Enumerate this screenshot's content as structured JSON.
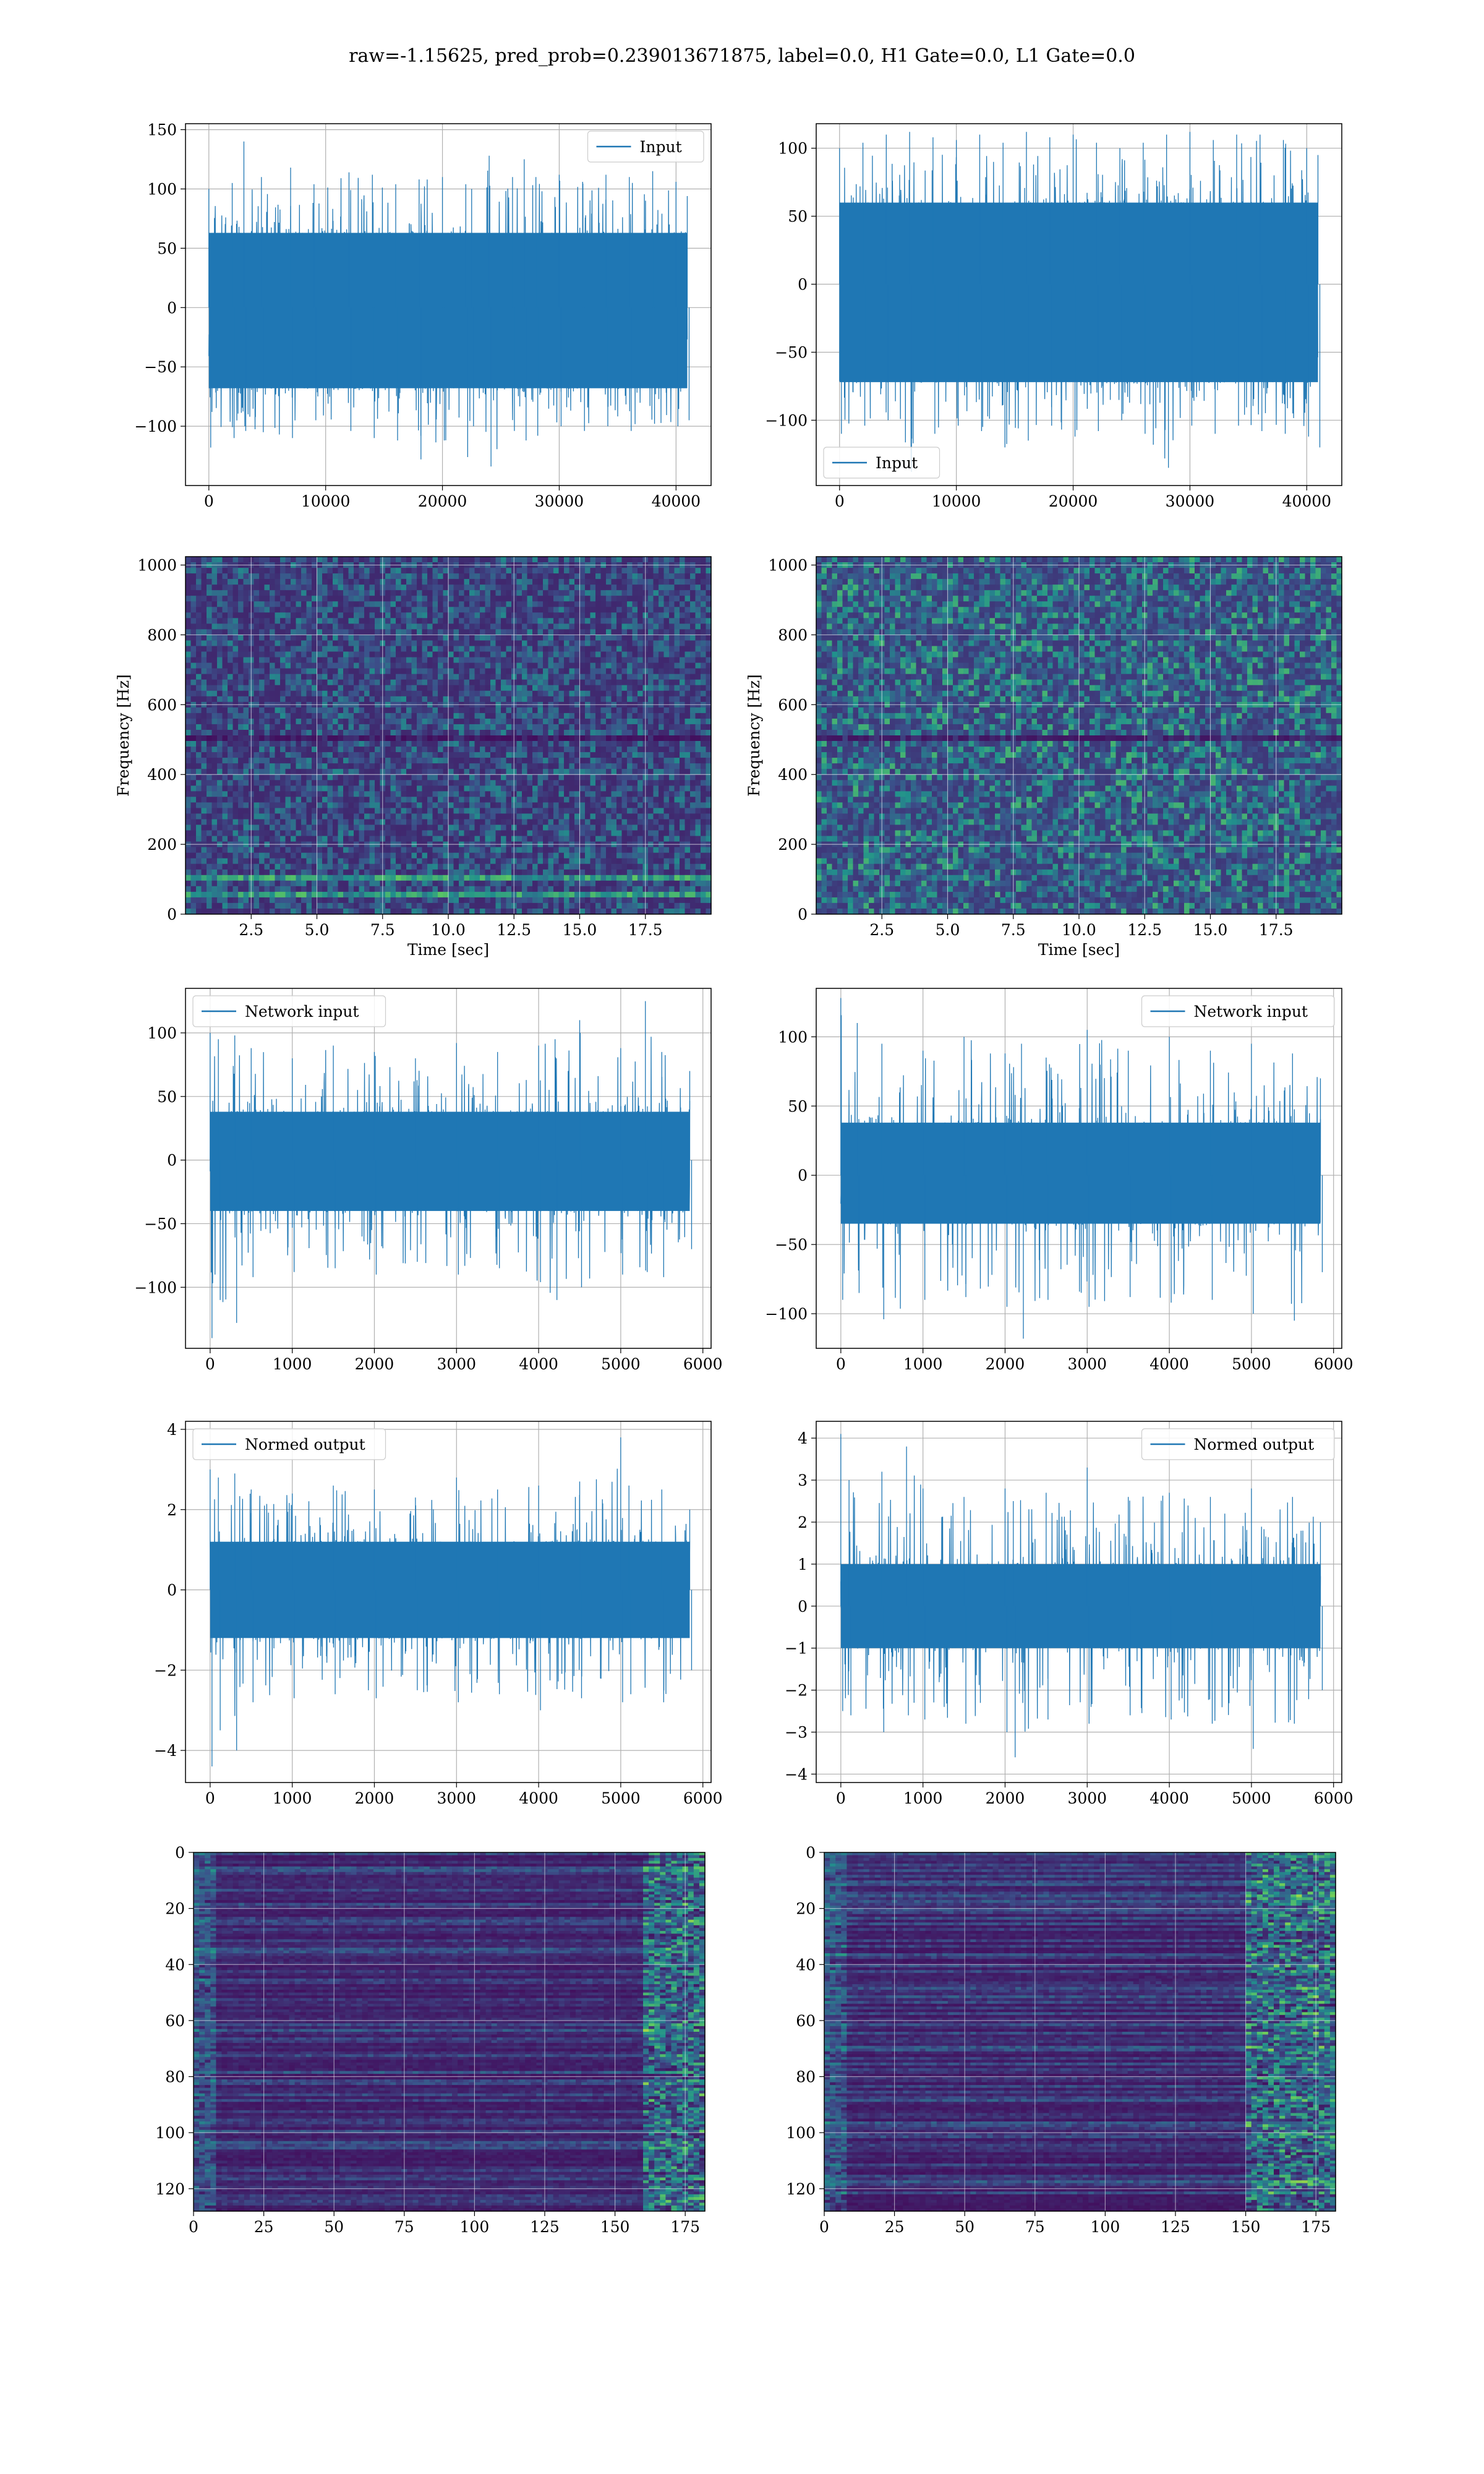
{
  "figure": {
    "suptitle": "raw=-1.15625, pred_prob=0.239013671875, label=0.0, H1 Gate=0.0, L1 Gate=0.0",
    "series_color": "#1f77b4"
  },
  "chart_data": [
    {
      "id": "input-h1",
      "type": "line",
      "title": "",
      "xlabel": "",
      "ylabel": "",
      "xlim": [
        -2000,
        43000
      ],
      "ylim": [
        -150,
        155
      ],
      "xticks": [
        0,
        10000,
        20000,
        30000,
        40000
      ],
      "xtick_labels": [
        "0",
        "10000",
        "20000",
        "30000",
        "40000"
      ],
      "yticks": [
        -100,
        -50,
        0,
        50,
        100,
        150
      ],
      "ytick_labels": [
        "−100",
        "−50",
        "0",
        "50",
        "100",
        "150"
      ],
      "grid": true,
      "legend": [
        "Input"
      ],
      "legend_loc": "upper right",
      "series": [
        {
          "name": "Input",
          "n_samples": 40960,
          "x_range": [
            0,
            40960
          ],
          "core_band": [
            -68,
            63
          ],
          "envelope_x": [
            0,
            2000,
            3000,
            4500,
            7000,
            9000,
            12000,
            14000,
            16000,
            18000,
            20000,
            22000,
            22500,
            24000,
            26000,
            27000,
            28000,
            30000,
            32000,
            34000,
            36000,
            38000,
            40000,
            40960
          ],
          "envelope_upper": [
            100,
            105,
            140,
            110,
            118,
            104,
            114,
            112,
            104,
            108,
            110,
            104,
            100,
            128,
            110,
            125,
            110,
            112,
            106,
            112,
            110,
            115,
            106,
            94
          ],
          "envelope_lower": [
            -118,
            -110,
            -104,
            -105,
            -110,
            -95,
            -104,
            -110,
            -112,
            -128,
            -112,
            -126,
            -100,
            -134,
            -104,
            -112,
            -108,
            -100,
            -104,
            -100,
            -104,
            -98,
            -100,
            -95
          ]
        }
      ]
    },
    {
      "id": "input-l1",
      "type": "line",
      "title": "",
      "xlabel": "",
      "ylabel": "",
      "xlim": [
        -2000,
        43000
      ],
      "ylim": [
        -148,
        118
      ],
      "xticks": [
        0,
        10000,
        20000,
        30000,
        40000
      ],
      "xtick_labels": [
        "0",
        "10000",
        "20000",
        "30000",
        "40000"
      ],
      "yticks": [
        -100,
        -50,
        0,
        50,
        100
      ],
      "ytick_labels": [
        "−100",
        "−50",
        "0",
        "50",
        "100"
      ],
      "grid": true,
      "legend": [
        "Input"
      ],
      "legend_loc": "lower left",
      "series": [
        {
          "name": "Input",
          "n_samples": 40960,
          "x_range": [
            0,
            40960
          ],
          "core_band": [
            -72,
            60
          ],
          "envelope_x": [
            0,
            2000,
            4000,
            6000,
            8000,
            10000,
            12000,
            14000,
            16000,
            18000,
            20000,
            22000,
            24000,
            26000,
            28000,
            30000,
            32000,
            34000,
            36000,
            38000,
            40000,
            40960
          ],
          "envelope_upper": [
            100,
            104,
            110,
            112,
            108,
            106,
            110,
            104,
            112,
            108,
            110,
            104,
            100,
            104,
            110,
            112,
            106,
            110,
            110,
            106,
            100,
            95
          ],
          "envelope_lower": [
            -110,
            -104,
            -100,
            -138,
            -110,
            -104,
            -108,
            -120,
            -115,
            -104,
            -112,
            -108,
            -100,
            -110,
            -135,
            -104,
            -110,
            -104,
            -108,
            -110,
            -112,
            -120
          ]
        }
      ]
    },
    {
      "id": "spectrogram-h1",
      "type": "heatmap",
      "title": "",
      "xlabel": "Time [sec]",
      "ylabel": "Frequency [Hz]",
      "xlim": [
        0,
        20
      ],
      "ylim": [
        0,
        1024
      ],
      "xticks": [
        2.5,
        5.0,
        7.5,
        10.0,
        12.5,
        15.0,
        17.5
      ],
      "xtick_labels": [
        "2.5",
        "5.0",
        "7.5",
        "10.0",
        "12.5",
        "15.0",
        "17.5"
      ],
      "yticks": [
        0,
        200,
        400,
        600,
        800,
        1000
      ],
      "ytick_labels": [
        "0",
        "200",
        "400",
        "600",
        "800",
        "1000"
      ],
      "grid": true,
      "colormap": "viridis",
      "features": {
        "bright_bands_hz": [
          50,
          100
        ],
        "dark_band_hz": 500,
        "intensity": "low"
      }
    },
    {
      "id": "spectrogram-l1",
      "type": "heatmap",
      "title": "",
      "xlabel": "Time [sec]",
      "ylabel": "Frequency [Hz]",
      "xlim": [
        0,
        20
      ],
      "ylim": [
        0,
        1024
      ],
      "xticks": [
        2.5,
        5.0,
        7.5,
        10.0,
        12.5,
        15.0,
        17.5
      ],
      "xtick_labels": [
        "2.5",
        "5.0",
        "7.5",
        "10.0",
        "12.5",
        "15.0",
        "17.5"
      ],
      "yticks": [
        0,
        200,
        400,
        600,
        800,
        1000
      ],
      "ytick_labels": [
        "0",
        "200",
        "400",
        "600",
        "800",
        "1000"
      ],
      "grid": true,
      "colormap": "viridis",
      "features": {
        "bright_bands_hz": [],
        "dark_band_hz": 500,
        "intensity": "medium"
      }
    },
    {
      "id": "network-input-h1",
      "type": "line",
      "title": "",
      "xlabel": "",
      "ylabel": "",
      "xlim": [
        -300,
        6100
      ],
      "ylim": [
        -148,
        135
      ],
      "xticks": [
        0,
        1000,
        2000,
        3000,
        4000,
        5000,
        6000
      ],
      "xtick_labels": [
        "0",
        "1000",
        "2000",
        "3000",
        "4000",
        "5000",
        "6000"
      ],
      "yticks": [
        -100,
        -50,
        0,
        50,
        100
      ],
      "ytick_labels": [
        "−100",
        "−50",
        "0",
        "50",
        "100"
      ],
      "grid": true,
      "legend": [
        "Network input"
      ],
      "legend_loc": "upper left",
      "series": [
        {
          "name": "Network input",
          "n_samples": 5840,
          "x_range": [
            0,
            5840
          ],
          "core_band": [
            -40,
            38
          ],
          "envelope_x": [
            0,
            100,
            300,
            500,
            1000,
            1500,
            2000,
            2500,
            3000,
            3500,
            4000,
            4200,
            4500,
            5000,
            5300,
            5500,
            5840
          ],
          "envelope_upper": [
            100,
            95,
            98,
            88,
            80,
            90,
            85,
            80,
            92,
            85,
            90,
            95,
            110,
            88,
            125,
            85,
            70
          ],
          "envelope_lower": [
            -140,
            -110,
            -128,
            -92,
            -88,
            -85,
            -90,
            -80,
            -90,
            -85,
            -96,
            -110,
            -100,
            -90,
            -88,
            -92,
            -70
          ]
        }
      ]
    },
    {
      "id": "network-input-l1",
      "type": "line",
      "title": "",
      "xlabel": "",
      "ylabel": "",
      "xlim": [
        -300,
        6100
      ],
      "ylim": [
        -125,
        135
      ],
      "xticks": [
        0,
        1000,
        2000,
        3000,
        4000,
        5000,
        6000
      ],
      "xtick_labels": [
        "0",
        "1000",
        "2000",
        "3000",
        "4000",
        "5000",
        "6000"
      ],
      "yticks": [
        -100,
        -50,
        0,
        50,
        100
      ],
      "ytick_labels": [
        "−100",
        "−50",
        "0",
        "50",
        "100"
      ],
      "grid": true,
      "legend": [
        "Network input"
      ],
      "legend_loc": "upper right",
      "series": [
        {
          "name": "Network input",
          "n_samples": 5840,
          "x_range": [
            0,
            5840
          ],
          "core_band": [
            -35,
            38
          ],
          "envelope_x": [
            0,
            200,
            500,
            1000,
            1500,
            2000,
            2200,
            2500,
            3000,
            3500,
            4000,
            4500,
            5000,
            5500,
            5840
          ],
          "envelope_upper": [
            128,
            110,
            95,
            90,
            100,
            88,
            95,
            85,
            105,
            90,
            100,
            90,
            95,
            88,
            70
          ],
          "envelope_lower": [
            -90,
            -85,
            -104,
            -90,
            -88,
            -95,
            -118,
            -90,
            -95,
            -88,
            -92,
            -90,
            -100,
            -105,
            -70
          ]
        }
      ]
    },
    {
      "id": "normed-output-h1",
      "type": "line",
      "title": "",
      "xlabel": "",
      "ylabel": "",
      "xlim": [
        -300,
        6100
      ],
      "ylim": [
        -4.8,
        4.2
      ],
      "xticks": [
        0,
        1000,
        2000,
        3000,
        4000,
        5000,
        6000
      ],
      "xtick_labels": [
        "0",
        "1000",
        "2000",
        "3000",
        "4000",
        "5000",
        "6000"
      ],
      "yticks": [
        -4,
        -2,
        0,
        2,
        4
      ],
      "ytick_labels": [
        "−4",
        "−2",
        "0",
        "2",
        "4"
      ],
      "grid": true,
      "legend": [
        "Normed output"
      ],
      "legend_loc": "upper left",
      "series": [
        {
          "name": "Normed output",
          "n_samples": 5840,
          "x_range": [
            0,
            5840
          ],
          "core_band": [
            -1.2,
            1.2
          ],
          "envelope_x": [
            0,
            100,
            300,
            500,
            1000,
            1500,
            2000,
            2500,
            3000,
            3500,
            4000,
            4500,
            5000,
            5100,
            5500,
            5840
          ],
          "envelope_upper": [
            3.0,
            2.8,
            2.9,
            2.5,
            2.4,
            2.6,
            2.5,
            2.3,
            2.8,
            2.5,
            2.6,
            2.7,
            3.8,
            2.6,
            2.5,
            2.0
          ],
          "envelope_lower": [
            -4.4,
            -3.5,
            -4.0,
            -2.8,
            -2.7,
            -2.6,
            -2.7,
            -2.5,
            -2.8,
            -2.6,
            -3.0,
            -2.7,
            -2.8,
            -2.6,
            -2.8,
            -2.0
          ]
        }
      ]
    },
    {
      "id": "normed-output-l1",
      "type": "line",
      "title": "",
      "xlabel": "",
      "ylabel": "",
      "xlim": [
        -300,
        6100
      ],
      "ylim": [
        -4.2,
        4.4
      ],
      "xticks": [
        0,
        1000,
        2000,
        3000,
        4000,
        5000,
        6000
      ],
      "xtick_labels": [
        "0",
        "1000",
        "2000",
        "3000",
        "4000",
        "5000",
        "6000"
      ],
      "yticks": [
        -4,
        -3,
        -2,
        -1,
        0,
        1,
        2,
        3,
        4
      ],
      "ytick_labels": [
        "−4",
        "−3",
        "−2",
        "−1",
        "0",
        "1",
        "2",
        "3",
        "4"
      ],
      "grid": true,
      "legend": [
        "Normed output"
      ],
      "legend_loc": "upper right",
      "series": [
        {
          "name": "Normed output",
          "n_samples": 5840,
          "x_range": [
            0,
            5840
          ],
          "core_band": [
            -1.0,
            1.0
          ],
          "envelope_x": [
            0,
            100,
            500,
            800,
            1000,
            1500,
            2000,
            2100,
            2500,
            3000,
            3500,
            4000,
            4500,
            5000,
            5500,
            5840
          ],
          "envelope_upper": [
            4.1,
            3.0,
            3.2,
            3.8,
            2.8,
            2.6,
            2.8,
            2.5,
            2.7,
            3.3,
            2.6,
            2.7,
            2.6,
            2.8,
            2.6,
            2.0
          ],
          "envelope_lower": [
            -2.5,
            -2.6,
            -3.0,
            -2.6,
            -2.7,
            -2.8,
            -3.0,
            -3.6,
            -2.7,
            -2.8,
            -2.6,
            -2.7,
            -2.8,
            -3.4,
            -2.8,
            -2.0
          ]
        }
      ]
    },
    {
      "id": "feature-map-h1",
      "type": "heatmap",
      "title": "",
      "xlabel": "",
      "ylabel": "",
      "xlim": [
        0,
        182
      ],
      "ylim": [
        128,
        0
      ],
      "xticks": [
        0,
        25,
        50,
        75,
        100,
        125,
        150,
        175
      ],
      "xtick_labels": [
        "0",
        "25",
        "50",
        "75",
        "100",
        "125",
        "150",
        "175"
      ],
      "yticks": [
        0,
        20,
        40,
        60,
        80,
        100,
        120
      ],
      "ytick_labels": [
        "0",
        "20",
        "40",
        "60",
        "80",
        "100",
        "120"
      ],
      "grid": true,
      "colormap": "viridis",
      "features": {
        "rows": 128,
        "cols": 182,
        "bright_columns_from": 160
      }
    },
    {
      "id": "feature-map-l1",
      "type": "heatmap",
      "title": "",
      "xlabel": "",
      "ylabel": "",
      "xlim": [
        0,
        182
      ],
      "ylim": [
        128,
        0
      ],
      "xticks": [
        0,
        25,
        50,
        75,
        100,
        125,
        150,
        175
      ],
      "xtick_labels": [
        "0",
        "25",
        "50",
        "75",
        "100",
        "125",
        "150",
        "175"
      ],
      "yticks": [
        0,
        20,
        40,
        60,
        80,
        100,
        120
      ],
      "ytick_labels": [
        "0",
        "20",
        "40",
        "60",
        "80",
        "100",
        "120"
      ],
      "grid": true,
      "colormap": "viridis",
      "features": {
        "rows": 128,
        "cols": 182,
        "bright_columns_from": 150
      }
    }
  ]
}
